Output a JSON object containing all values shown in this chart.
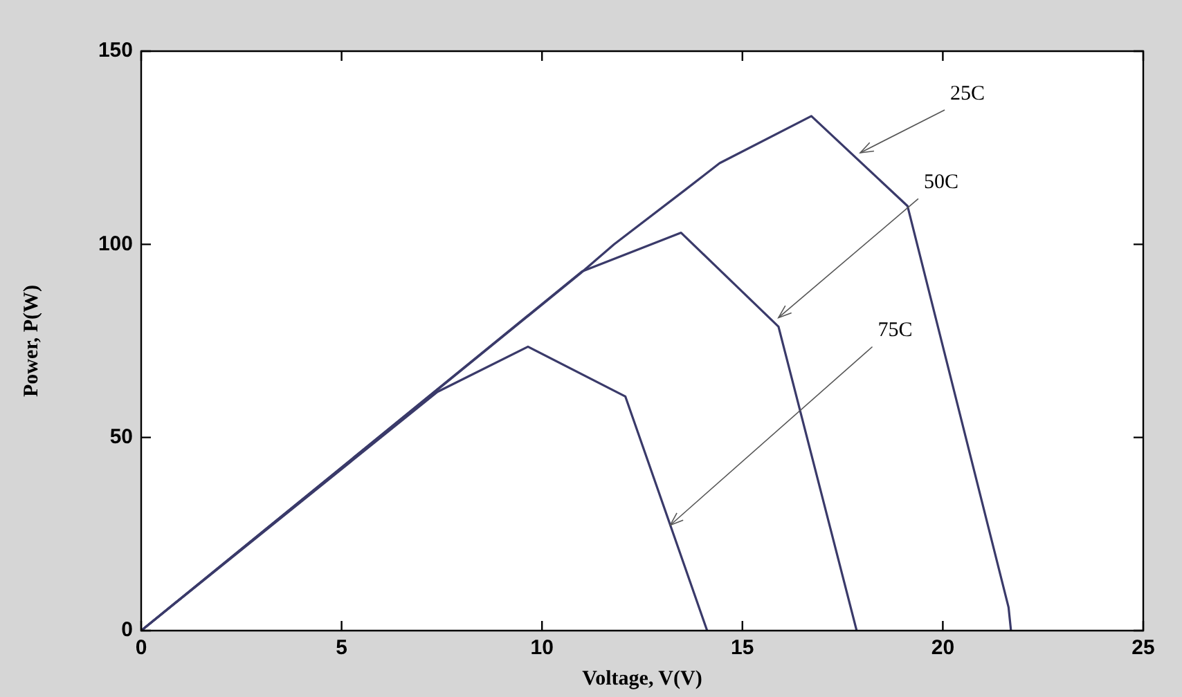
{
  "chart_data": {
    "type": "line",
    "xlabel": "Voltage, V(V)",
    "ylabel": "Power, P(W)",
    "xlim": [
      0,
      25
    ],
    "ylim": [
      0,
      150
    ],
    "xticks": [
      0,
      5,
      10,
      15,
      20,
      25
    ],
    "yticks": [
      0,
      50,
      100,
      150
    ],
    "grid": false,
    "legend": false,
    "marker": "none",
    "line_style": "solid",
    "series": [
      {
        "color": "#3a3a6a",
        "x": [
          0,
          10.95,
          11.8,
          13.56,
          14.43,
          16.72,
          19.12,
          21.64,
          21.7
        ],
        "values": [
          0,
          92.4,
          100,
          114,
          121,
          133.2,
          109.9,
          6,
          0
        ]
      },
      {
        "color": "#3a3a6a",
        "x": [
          0,
          11,
          13.47,
          15.9,
          17.85
        ],
        "values": [
          0,
          93,
          103,
          78.7,
          0
        ]
      },
      {
        "color": "#3a3a6a",
        "x": [
          0,
          7.39,
          9.65,
          12.08,
          14.12
        ],
        "values": [
          0,
          61.8,
          73.5,
          60.6,
          0
        ]
      }
    ],
    "annotations": [
      {
        "text": "25C",
        "x": 17.94,
        "y": 123.7
      },
      {
        "text": "50C",
        "x": 15.9,
        "y": 81
      },
      {
        "text": "75C",
        "x": 13.2,
        "y": 27.3
      }
    ]
  }
}
